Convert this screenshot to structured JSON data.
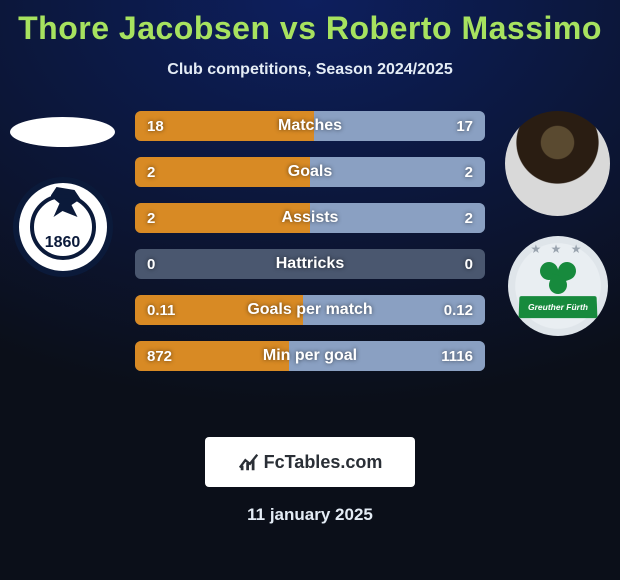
{
  "colors": {
    "page_bg_top": "#0d1f5e",
    "page_bg_bottom": "#0b0f19",
    "title_color": "#a7e25f",
    "subtitle_color": "#e4ecf5",
    "row_base": "#4a576f",
    "row_left_fill": "#d88a24",
    "row_right_fill": "#8aa0c2",
    "row_text": "#ffffff",
    "attrib_bg": "#ffffff",
    "attrib_text": "#2a2f36",
    "attrib_accent": "#2a2f36",
    "date_color": "#e4ecf5"
  },
  "title": "Thore Jacobsen vs Roberto Massimo",
  "subtitle": "Club competitions, Season 2024/2025",
  "left_club_year": "1860",
  "right_club_banner": "Greuther Fürth",
  "rows": [
    {
      "label": "Matches",
      "left": "18",
      "right": "17",
      "left_pct": 51,
      "right_pct": 49
    },
    {
      "label": "Goals",
      "left": "2",
      "right": "2",
      "left_pct": 50,
      "right_pct": 50
    },
    {
      "label": "Assists",
      "left": "2",
      "right": "2",
      "left_pct": 50,
      "right_pct": 50
    },
    {
      "label": "Hattricks",
      "left": "0",
      "right": "0",
      "left_pct": 0,
      "right_pct": 0
    },
    {
      "label": "Goals per match",
      "left": "0.11",
      "right": "0.12",
      "left_pct": 48,
      "right_pct": 52
    },
    {
      "label": "Min per goal",
      "left": "872",
      "right": "1116",
      "left_pct": 44,
      "right_pct": 56
    }
  ],
  "attribution": "FcTables.com",
  "date": "11 january 2025"
}
